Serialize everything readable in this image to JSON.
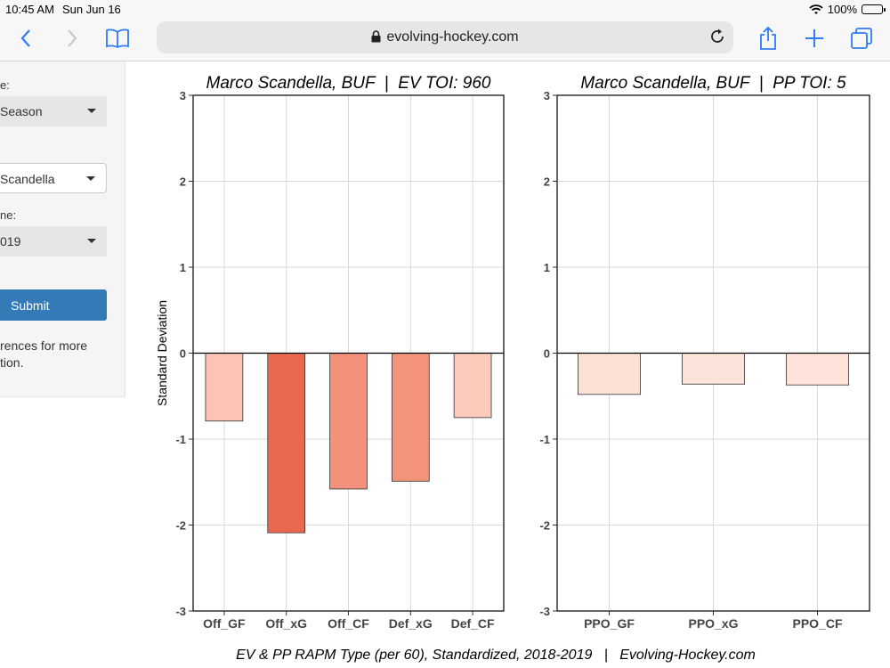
{
  "status_bar": {
    "time": "10:45 AM",
    "date": "Sun Jun 16",
    "battery": "100%"
  },
  "browser": {
    "url": "evolving-hockey.com",
    "icons": [
      "back-icon",
      "forward-icon",
      "bookmarks-icon",
      "lock-icon",
      "reload-icon",
      "share-icon",
      "new-tab-icon",
      "tabs-icon"
    ]
  },
  "sidebar": {
    "label1": "e:",
    "select1": "Season",
    "select2": "Scandella",
    "label3": "ne:",
    "select3": "019",
    "submit": "Submit",
    "note_line1": "rences for more",
    "note_line2": "tion."
  },
  "chart_data": [
    {
      "type": "bar",
      "title": "Marco Scandella, BUF  |  EV TOI: 960",
      "ylabel": "Standard Deviation",
      "ylim": [
        -3,
        3
      ],
      "yticks": [
        "3",
        "2",
        "1",
        "0",
        "-1",
        "-2",
        "-3"
      ],
      "categories": [
        "Off_GF",
        "Off_xG",
        "Off_CF",
        "Def_xG",
        "Def_CF"
      ],
      "values": [
        -0.79,
        -2.09,
        -1.58,
        -1.49,
        -0.75
      ],
      "colors": [
        "#fbc4b4",
        "#e8694e",
        "#f4917a",
        "#f4937c",
        "#fccbbb"
      ],
      "grid": true
    },
    {
      "type": "bar",
      "title": "Marco Scandella, BUF  |  PP TOI: 5",
      "ylabel": "",
      "ylim": [
        -3,
        3
      ],
      "yticks": [
        "3",
        "2",
        "1",
        "0",
        "-1",
        "-2",
        "-3"
      ],
      "categories": [
        "PPO_GF",
        "PPO_xG",
        "PPO_CF"
      ],
      "values": [
        -0.48,
        -0.36,
        -0.37
      ],
      "colors": [
        "#fde0d6",
        "#fde4da",
        "#fde3d9"
      ],
      "grid": true
    }
  ],
  "caption": "EV & PP RAPM Type (per 60), Standardized, 2018-2019   |   Evolving-Hockey.com"
}
